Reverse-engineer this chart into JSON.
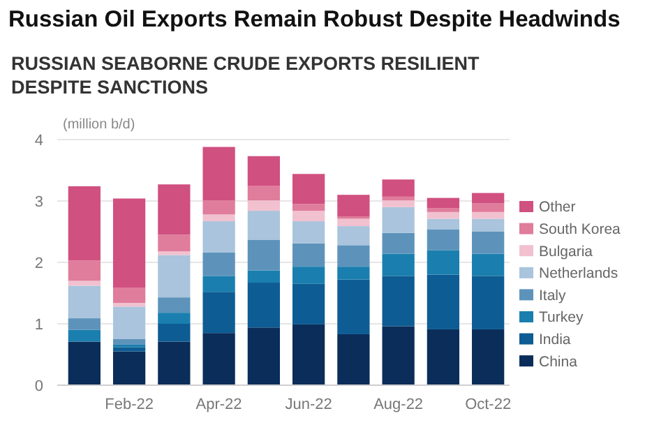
{
  "chart_data": {
    "type": "bar",
    "stacked": true,
    "title": "Russian Oil Exports Remain Robust Despite Headwinds",
    "subtitle": "RUSSIAN SEABORNE CRUDE EXPORTS RESILIENT DESPITE SANCTIONS",
    "ylabel": "(million b/d)",
    "categories": [
      null,
      "Feb-22",
      null,
      "Apr-22",
      null,
      "Jun-22",
      null,
      "Aug-22",
      null,
      "Oct-22"
    ],
    "series": [
      {
        "name": "China",
        "color": "#0a2d5a",
        "values": [
          0.71,
          0.55,
          0.71,
          0.85,
          0.94,
          0.99,
          0.83,
          0.96,
          0.91,
          0.91
        ]
      },
      {
        "name": "India",
        "color": "#0d5c93",
        "values": [
          0,
          0.07,
          0.29,
          0.67,
          0.73,
          0.66,
          0.89,
          0.82,
          0.89,
          0.87
        ]
      },
      {
        "name": "Turkey",
        "color": "#1a7fae",
        "values": [
          0.19,
          0.04,
          0.18,
          0.26,
          0.2,
          0.28,
          0.21,
          0.36,
          0.4,
          0.36
        ]
      },
      {
        "name": "Italy",
        "color": "#5d93bb",
        "values": [
          0.19,
          0.09,
          0.25,
          0.38,
          0.5,
          0.38,
          0.35,
          0.34,
          0.34,
          0.36
        ]
      },
      {
        "name": "Netherlands",
        "color": "#a9c4dc",
        "values": [
          0.53,
          0.53,
          0.69,
          0.51,
          0.47,
          0.36,
          0.31,
          0.42,
          0.17,
          0.21
        ]
      },
      {
        "name": "Bulgaria",
        "color": "#f1c1d0",
        "values": [
          0.08,
          0.06,
          0.06,
          0.11,
          0.17,
          0.17,
          0.12,
          0.11,
          0.11,
          0.11
        ]
      },
      {
        "name": "South Korea",
        "color": "#e07c9c",
        "values": [
          0.33,
          0.25,
          0.27,
          0.23,
          0.24,
          0.11,
          0.04,
          0.06,
          0.06,
          0.14
        ]
      },
      {
        "name": "Other",
        "color": "#d05080",
        "values": [
          1.21,
          1.45,
          0.82,
          0.87,
          0.48,
          0.49,
          0.35,
          0.28,
          0.17,
          0.17
        ]
      }
    ],
    "ylim": [
      0,
      4
    ],
    "yticks": [
      0,
      1,
      2,
      3,
      4
    ],
    "grid": "y",
    "legend": "right"
  }
}
